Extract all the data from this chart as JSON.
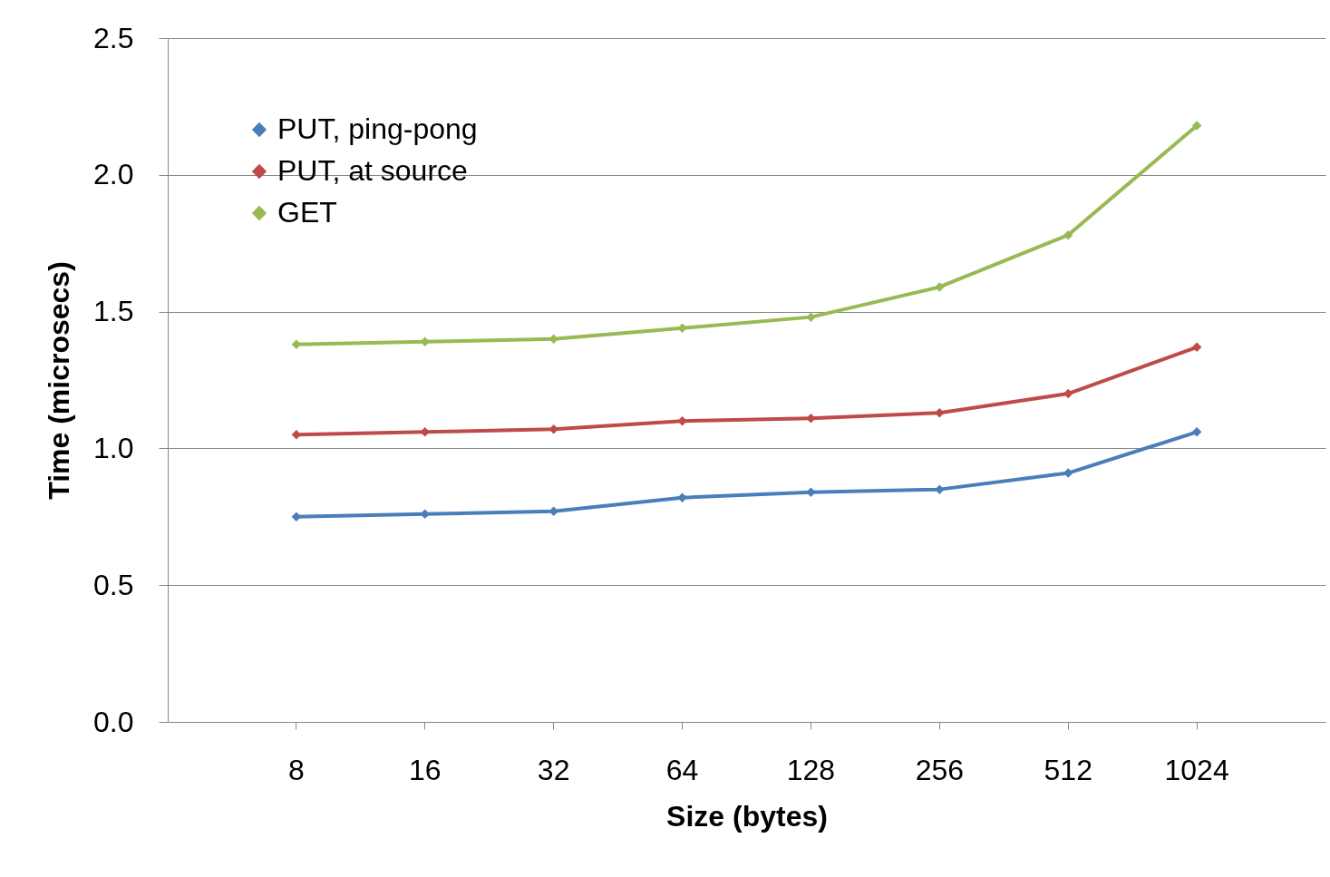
{
  "chart_data": {
    "type": "line",
    "xlabel": "Size (bytes)",
    "ylabel": "Time (microsecs)",
    "categories": [
      "8",
      "16",
      "32",
      "64",
      "128",
      "256",
      "512",
      "1024"
    ],
    "series": [
      {
        "name": "PUT, ping-pong",
        "color": "#4a7ebb",
        "values": [
          0.75,
          0.76,
          0.77,
          0.82,
          0.84,
          0.85,
          0.91,
          1.06
        ]
      },
      {
        "name": "PUT, at source",
        "color": "#be4b48",
        "values": [
          1.05,
          1.06,
          1.07,
          1.1,
          1.11,
          1.13,
          1.2,
          1.37
        ]
      },
      {
        "name": "GET",
        "color": "#98b954",
        "values": [
          1.38,
          1.39,
          1.4,
          1.44,
          1.48,
          1.59,
          1.78,
          2.18
        ]
      }
    ],
    "ylim": [
      0,
      2.5
    ],
    "yticks": [
      {
        "value": 0,
        "label": "0.0"
      },
      {
        "value": 0.5,
        "label": "0.5"
      },
      {
        "value": 1,
        "label": "1.0"
      },
      {
        "value": 1.5,
        "label": "1.5"
      },
      {
        "value": 2,
        "label": "2.0"
      },
      {
        "value": 2.5,
        "label": "2.5"
      }
    ],
    "grid": "y",
    "legend": "top left",
    "marker": "diamond",
    "line_style": "solid"
  }
}
